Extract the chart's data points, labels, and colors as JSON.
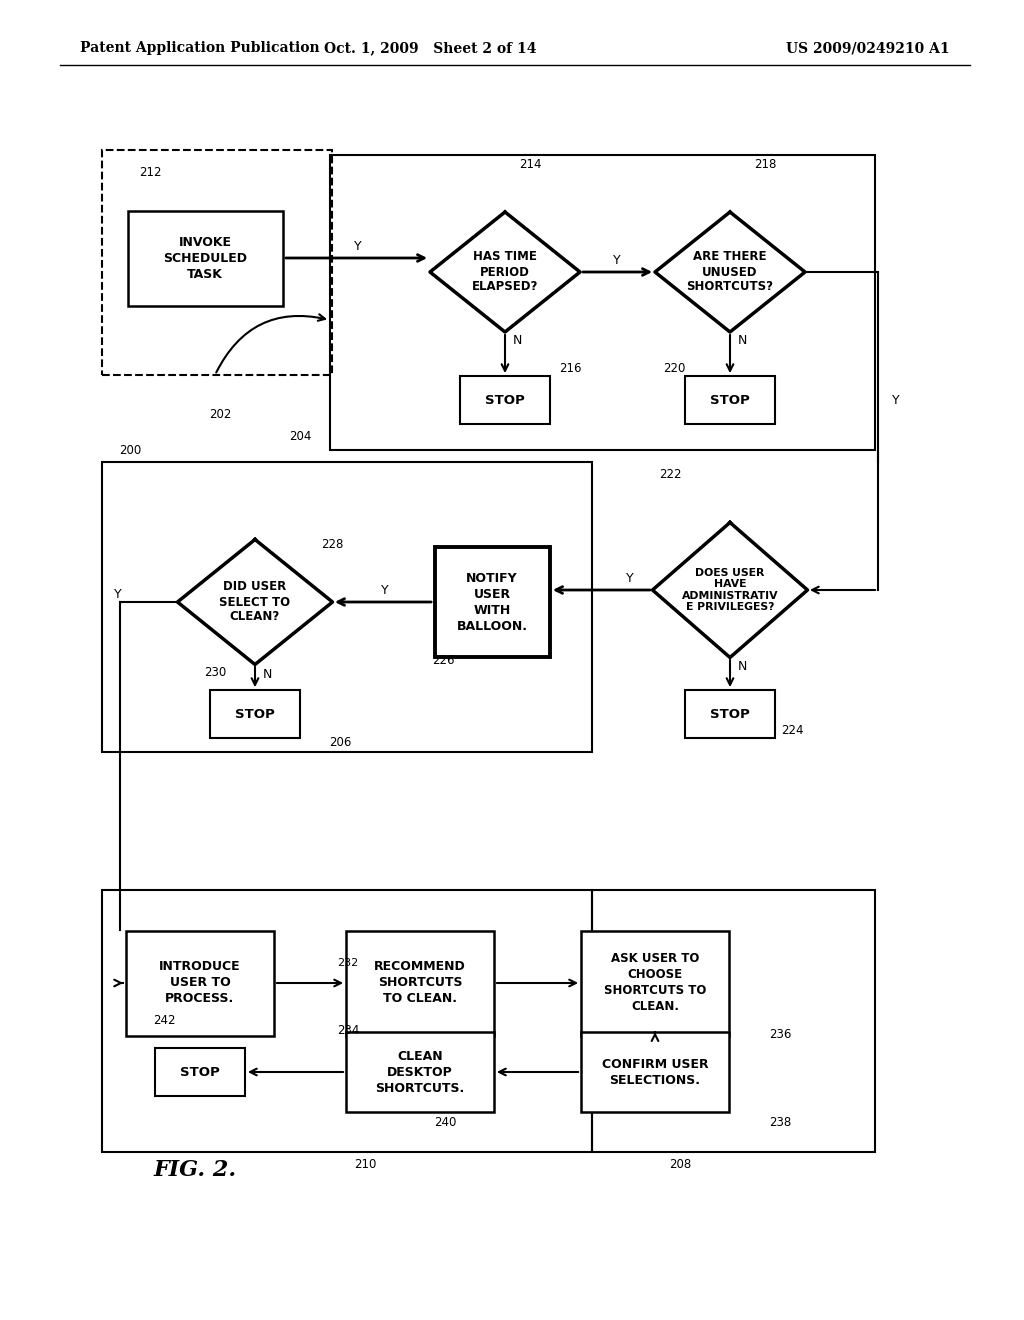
{
  "title_left": "Patent Application Publication",
  "title_mid": "Oct. 1, 2009   Sheet 2 of 14",
  "title_right": "US 2009/0249210 A1",
  "fig_label": "FIG. 2.",
  "bg_color": "#ffffff"
}
